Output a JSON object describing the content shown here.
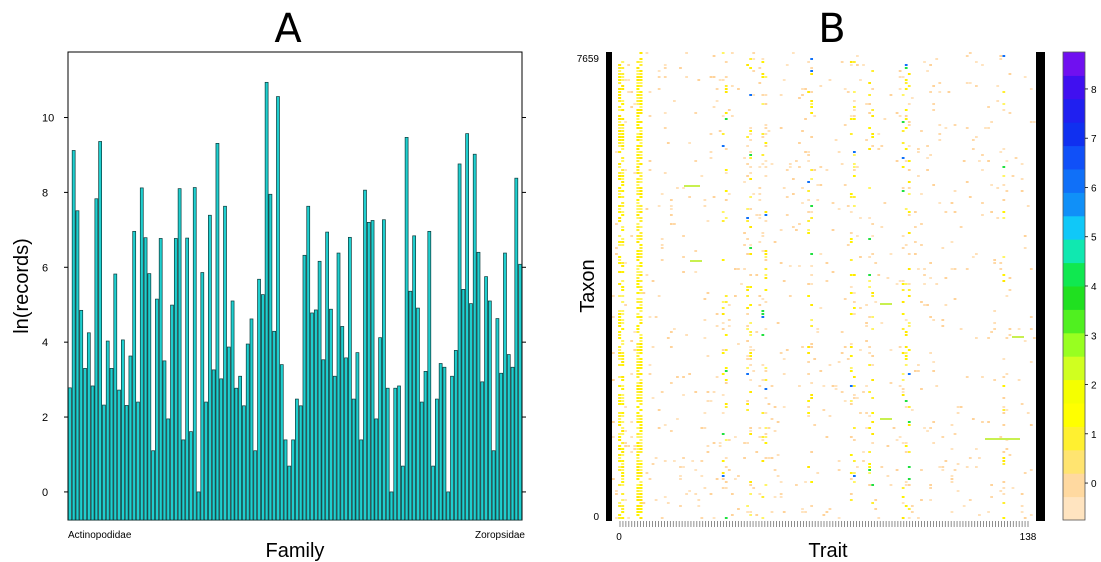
{
  "chart_data": [
    {
      "type": "bar",
      "title": "A",
      "xlabel": "Family",
      "ylabel": "ln(records)",
      "ylim": [
        -0.75,
        11.75
      ],
      "yticks": [
        "0",
        "2",
        "4",
        "6",
        "8",
        "10"
      ],
      "first_category": "Actinopodidae",
      "last_category": "Zoropsidae",
      "bar_color": "#1fcfcf",
      "values": [
        2.78,
        9.12,
        7.51,
        4.85,
        3.3,
        4.25,
        2.83,
        7.83,
        9.36,
        2.32,
        4.03,
        3.3,
        5.82,
        2.72,
        4.06,
        2.31,
        3.63,
        6.96,
        2.4,
        8.12,
        6.79,
        5.83,
        1.1,
        5.15,
        6.77,
        3.5,
        1.95,
        4.99,
        6.77,
        8.1,
        1.39,
        6.78,
        1.61,
        8.13,
        0.0,
        5.86,
        2.4,
        7.39,
        3.26,
        9.31,
        3.02,
        7.63,
        3.87,
        5.1,
        2.77,
        3.09,
        2.3,
        3.95,
        4.62,
        1.1,
        5.68,
        5.27,
        10.94,
        7.95,
        4.29,
        10.56,
        3.4,
        1.39,
        0.69,
        1.39,
        2.48,
        2.3,
        6.32,
        7.63,
        4.78,
        4.86,
        6.16,
        3.53,
        6.94,
        4.88,
        3.09,
        6.38,
        4.42,
        3.58,
        6.8,
        2.48,
        3.72,
        1.39,
        8.06,
        7.2,
        7.25,
        1.95,
        4.12,
        7.27,
        2.77,
        0.0,
        2.77,
        2.83,
        0.69,
        9.47,
        5.36,
        6.84,
        4.91,
        2.4,
        3.22,
        6.96,
        0.69,
        2.48,
        3.43,
        3.33,
        0.0,
        3.09,
        3.78,
        8.76,
        5.41,
        9.57,
        5.03,
        9.02,
        6.4,
        2.94,
        5.75,
        5.1,
        1.1,
        4.63,
        3.17,
        6.38,
        3.67,
        3.33,
        8.38,
        6.08
      ]
    },
    {
      "type": "heatmap",
      "title": "B",
      "xlabel": "Trait",
      "ylabel": "Taxon",
      "x_range": [
        0,
        138
      ],
      "y_range": [
        0,
        7659
      ],
      "x_ticks": [
        "0",
        "138"
      ],
      "y_ticks": [
        "0",
        "7659"
      ],
      "colorbar": {
        "ticks": [
          "0",
          "1",
          "2",
          "3",
          "4",
          "5",
          "6",
          "7",
          "8"
        ],
        "colors": [
          "#ffe4c0",
          "#ffd9a0",
          "#ffe470",
          "#fff030",
          "#ffff00",
          "#f5ff00",
          "#d0ff20",
          "#98ff20",
          "#50f020",
          "#20e020",
          "#10e850",
          "#10e8b0",
          "#10c8f8",
          "#1090f8",
          "#1070f8",
          "#1050f8",
          "#1030f0",
          "#2020f0",
          "#4010f0",
          "#7010f0"
        ]
      }
    }
  ]
}
